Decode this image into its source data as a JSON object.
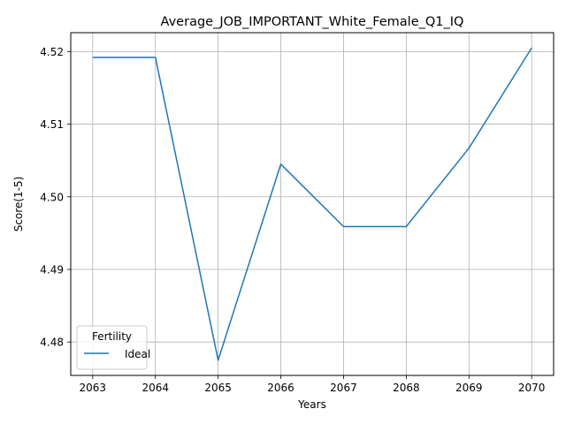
{
  "chart_data": {
    "type": "line",
    "title": "Average_JOB_IMPORTANT_White_Female_Q1_IQ",
    "xlabel": "Years",
    "ylabel": "Score(1-5)",
    "x": [
      2063,
      2064,
      2065,
      2066,
      2067,
      2068,
      2069,
      2070
    ],
    "series": [
      {
        "name": "Ideal",
        "color": "#1f77b4",
        "values": [
          4.5192,
          4.5192,
          4.4775,
          4.5045,
          4.4959,
          4.4959,
          4.5067,
          4.5205
        ]
      }
    ],
    "xlim": [
      2062.65,
      2070.35
    ],
    "ylim": [
      4.4754,
      4.5226
    ],
    "yticks": [
      4.48,
      4.49,
      4.5,
      4.51,
      4.52
    ],
    "ytick_labels": [
      "4.48",
      "4.49",
      "4.50",
      "4.51",
      "4.52"
    ],
    "xtick_labels": [
      "2063",
      "2064",
      "2065",
      "2066",
      "2067",
      "2068",
      "2069",
      "2070"
    ],
    "grid": true,
    "legend": {
      "title": "Fertility",
      "placement": "lower-left"
    }
  }
}
